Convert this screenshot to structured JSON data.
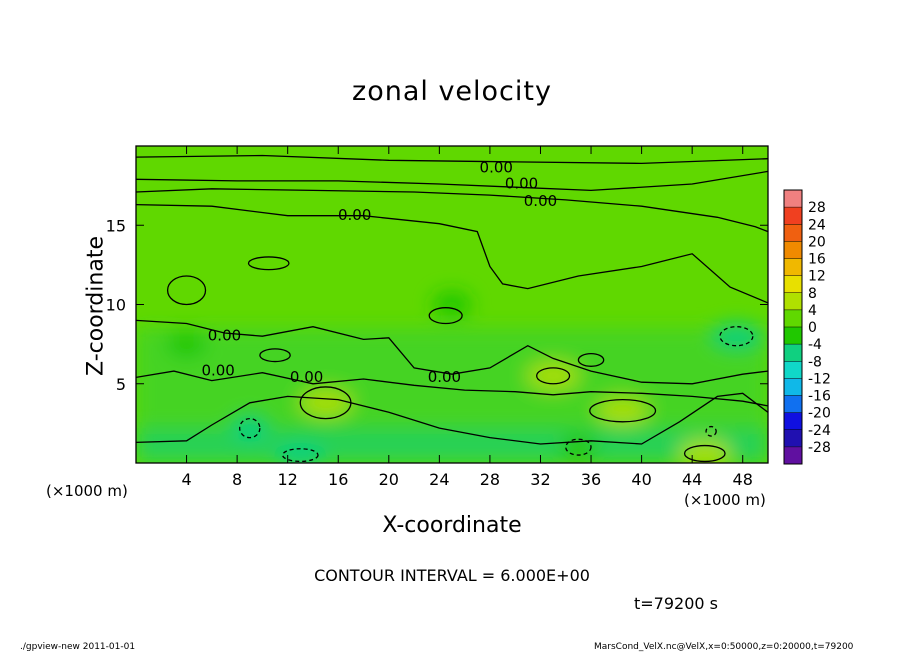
{
  "title": "zonal velocity",
  "footer": {
    "left": "./gpview-new   2011-01-01",
    "right": "MarsCond_VelX.nc@VelX,x=0:50000,z=0:20000,t=79200"
  },
  "annotations": {
    "contour_interval": "CONTOUR INTERVAL = 6.000E+00",
    "time": "t=79200 s",
    "x_unit_left": "(×1000 m)",
    "x_unit_right": "(×1000 m)"
  },
  "chart_data": {
    "type": "heatmap",
    "title": "zonal velocity",
    "xlabel": "X-coordinate",
    "ylabel": "Z-coordinate",
    "xunit": "(×1000 m)",
    "xlim": [
      0,
      50
    ],
    "ylim": [
      0,
      20
    ],
    "xticks": [
      4,
      8,
      12,
      16,
      20,
      24,
      28,
      32,
      36,
      40,
      44,
      48
    ],
    "yticks": [
      5,
      10,
      15
    ],
    "colorbar": {
      "labels": [
        "28",
        "24",
        "20",
        "16",
        "12",
        "8",
        "4",
        "0",
        "-4",
        "-8",
        "-12",
        "-16",
        "-20",
        "-24",
        "-28"
      ],
      "colors": [
        "#f08080",
        "#f04020",
        "#f06010",
        "#f08a00",
        "#f0b800",
        "#e8e000",
        "#b0e000",
        "#60d800",
        "#20c800",
        "#10d080",
        "#10d8c8",
        "#10b8e8",
        "#1070f0",
        "#1010e0",
        "#2010b0",
        "#6010a0"
      ]
    },
    "contour_interval": 6.0,
    "contour_labels": [
      "0.00",
      "0.00",
      "0.00",
      "0.00",
      "0.00",
      "0.00",
      "0.00",
      "0.00"
    ],
    "regions": [
      {
        "x": 15,
        "z": 3.8,
        "value": 6
      },
      {
        "x": 38.5,
        "z": 3.3,
        "value": 8
      },
      {
        "x": 33,
        "z": 5.5,
        "value": 5
      },
      {
        "x": 45,
        "z": 0.6,
        "value": 7
      },
      {
        "x": 13,
        "z": 0.5,
        "value": -5
      },
      {
        "x": 9,
        "z": 2.2,
        "value": -4
      },
      {
        "x": 35,
        "z": 1.0,
        "value": -3
      },
      {
        "x": 47.5,
        "z": 8.0,
        "value": -5
      },
      {
        "x": 4,
        "z": 7.5,
        "value": -2
      },
      {
        "x": 25,
        "z": 10,
        "value": 0
      }
    ]
  }
}
